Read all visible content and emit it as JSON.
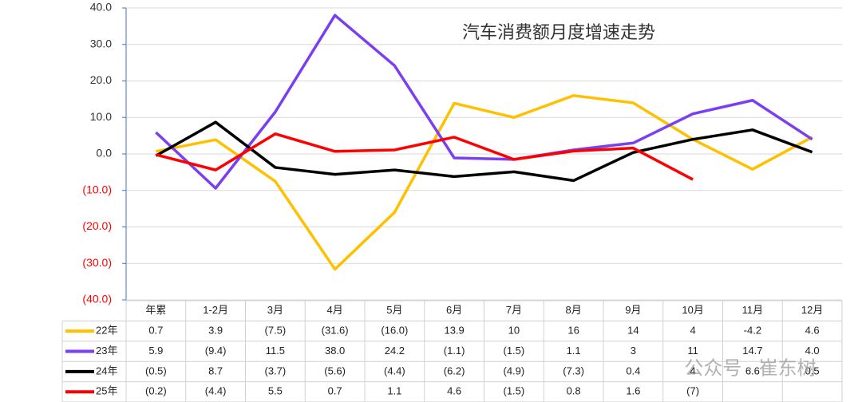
{
  "chart_data": {
    "type": "line",
    "title": "汽车消费额月度增速走势",
    "watermark": "公众号 · 崔东树",
    "categories": [
      "年累",
      "1-2月",
      "3月",
      "4月",
      "5月",
      "6月",
      "7月",
      "8月",
      "9月",
      "10月",
      "11月",
      "12月"
    ],
    "ylim": [
      -40,
      40
    ],
    "yticks": [
      {
        "value": -40,
        "label": "(40.0)"
      },
      {
        "value": -30,
        "label": "(30.0)"
      },
      {
        "value": -20,
        "label": "(20.0)"
      },
      {
        "value": -10,
        "label": "(10.0)"
      },
      {
        "value": 0,
        "label": "0.0"
      },
      {
        "value": 10,
        "label": "10.0"
      },
      {
        "value": 20,
        "label": "20.0"
      },
      {
        "value": 30,
        "label": "30.0"
      },
      {
        "value": 40,
        "label": "40.0"
      }
    ],
    "grid": true,
    "series": [
      {
        "name": "22年",
        "color": "#ffc000",
        "values": [
          0.7,
          3.9,
          -7.5,
          -31.6,
          -16.0,
          13.9,
          10,
          16,
          14,
          4,
          -4.2,
          4.6
        ],
        "value_labels": [
          "0.7",
          "3.9",
          "(7.5)",
          "(31.6)",
          "(16.0)",
          "13.9",
          "10",
          "16",
          "14",
          "4",
          "-4.2",
          "4.6"
        ]
      },
      {
        "name": "23年",
        "color": "#7b3ff2",
        "values": [
          5.9,
          -9.4,
          11.5,
          38.0,
          24.2,
          -1.1,
          -1.5,
          1.1,
          3,
          11,
          14.7,
          4.0
        ],
        "value_labels": [
          "5.9",
          "(9.4)",
          "11.5",
          "38.0",
          "24.2",
          "(1.1)",
          "(1.5)",
          "1.1",
          "3",
          "11",
          "14.7",
          "4.0"
        ]
      },
      {
        "name": "24年",
        "color": "#000000",
        "values": [
          -0.5,
          8.7,
          -3.7,
          -5.6,
          -4.4,
          -6.2,
          -4.9,
          -7.3,
          0.4,
          4,
          6.6,
          0.5
        ],
        "value_labels": [
          "(0.5)",
          "8.7",
          "(3.7)",
          "(5.6)",
          "(4.4)",
          "(6.2)",
          "(4.9)",
          "(7.3)",
          "0.4",
          "4",
          "6.6",
          "0.5"
        ]
      },
      {
        "name": "25年",
        "color": "#ff0000",
        "values": [
          -0.2,
          -4.4,
          5.5,
          0.7,
          1.1,
          4.6,
          -1.5,
          0.8,
          1.6,
          -7,
          null,
          null
        ],
        "value_labels": [
          "(0.2)",
          "(4.4)",
          "5.5",
          "0.7",
          "1.1",
          "4.6",
          "(1.5)",
          "0.8",
          "1.6",
          "(7)",
          null,
          null
        ]
      }
    ]
  }
}
